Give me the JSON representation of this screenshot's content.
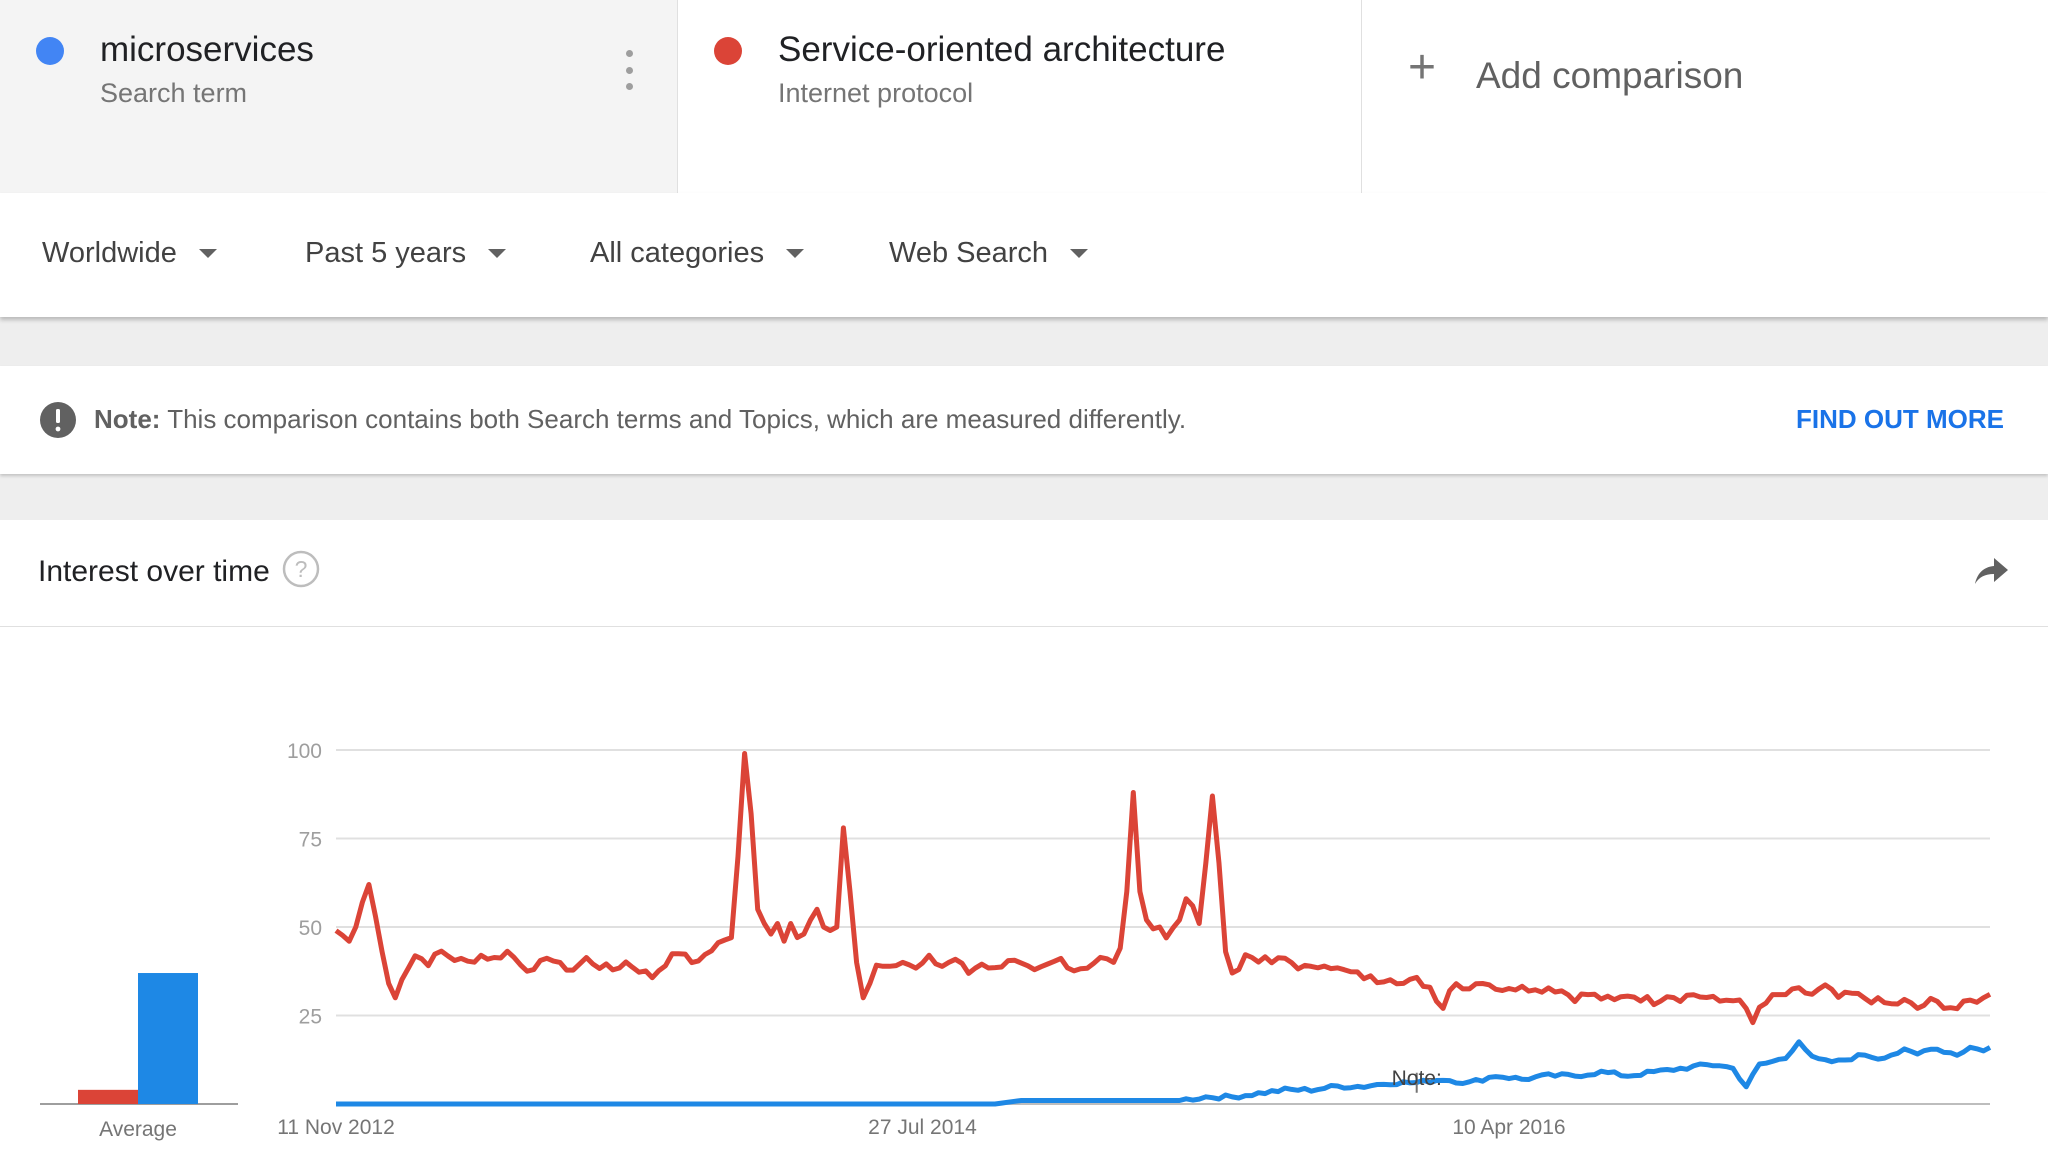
{
  "terms": [
    {
      "name": "microservices",
      "type": "Search term",
      "color": "#4285f4"
    },
    {
      "name": "Service-oriented architecture",
      "type": "Internet protocol",
      "color": "#db4437"
    }
  ],
  "add_comparison": "Add comparison",
  "filters": {
    "region": "Worldwide",
    "period": "Past 5 years",
    "category": "All categories",
    "search_type": "Web Search"
  },
  "note": {
    "label": "Note:",
    "text": "This comparison contains both Search terms and Topics, which are measured differently.",
    "link": "FIND OUT MORE"
  },
  "card": {
    "title": "Interest over time"
  },
  "icons": [
    "kebab-menu-icon",
    "plus-icon",
    "chevron-down-icon",
    "exclamation-icon",
    "help-icon",
    "share-icon"
  ],
  "chart_data": {
    "type": "line",
    "ylim": [
      0,
      100
    ],
    "y_ticks": [
      "100",
      "75",
      "50",
      "25"
    ],
    "x_tick_labels": [
      {
        "index": 0,
        "label": "11 Nov 2012"
      },
      {
        "index": 89,
        "label": "27 Jul 2014"
      },
      {
        "index": 178,
        "label": "10 Apr 2016"
      }
    ],
    "annotation": {
      "index": 164,
      "label": "Note:"
    },
    "average": {
      "label": "Average",
      "values": [
        4,
        37
      ]
    },
    "series": [
      {
        "color": "#db4437",
        "anchors": [
          [
            0,
            49
          ],
          [
            2,
            46
          ],
          [
            3,
            50
          ],
          [
            4,
            57
          ],
          [
            5,
            62
          ],
          [
            6,
            53
          ],
          [
            7,
            43
          ],
          [
            8,
            34
          ],
          [
            9,
            30
          ],
          [
            10,
            36
          ],
          [
            12,
            42
          ],
          [
            14,
            40
          ],
          [
            16,
            43
          ],
          [
            18,
            41
          ],
          [
            20,
            40
          ],
          [
            22,
            42
          ],
          [
            24,
            41
          ],
          [
            26,
            43
          ],
          [
            28,
            40
          ],
          [
            30,
            37
          ],
          [
            32,
            42
          ],
          [
            34,
            39
          ],
          [
            36,
            38
          ],
          [
            38,
            41
          ],
          [
            40,
            39
          ],
          [
            42,
            38
          ],
          [
            44,
            40
          ],
          [
            46,
            38
          ],
          [
            48,
            36
          ],
          [
            50,
            40
          ],
          [
            52,
            43
          ],
          [
            54,
            40
          ],
          [
            56,
            42
          ],
          [
            58,
            45
          ],
          [
            60,
            47
          ],
          [
            61,
            70
          ],
          [
            62,
            99
          ],
          [
            63,
            82
          ],
          [
            64,
            55
          ],
          [
            65,
            51
          ],
          [
            66,
            48
          ],
          [
            67,
            51
          ],
          [
            68,
            46
          ],
          [
            69,
            51
          ],
          [
            70,
            47
          ],
          [
            71,
            48
          ],
          [
            72,
            52
          ],
          [
            73,
            55
          ],
          [
            74,
            50
          ],
          [
            75,
            49
          ],
          [
            76,
            50
          ],
          [
            77,
            78
          ],
          [
            78,
            60
          ],
          [
            79,
            40
          ],
          [
            80,
            30
          ],
          [
            81,
            34
          ],
          [
            82,
            40
          ],
          [
            84,
            39
          ],
          [
            86,
            41
          ],
          [
            88,
            38
          ],
          [
            90,
            41
          ],
          [
            92,
            39
          ],
          [
            94,
            41
          ],
          [
            96,
            37
          ],
          [
            98,
            40
          ],
          [
            100,
            38
          ],
          [
            102,
            41
          ],
          [
            104,
            39
          ],
          [
            106,
            37
          ],
          [
            108,
            39
          ],
          [
            110,
            41
          ],
          [
            112,
            38
          ],
          [
            114,
            39
          ],
          [
            116,
            41
          ],
          [
            118,
            40
          ],
          [
            119,
            44
          ],
          [
            120,
            60
          ],
          [
            121,
            88
          ],
          [
            122,
            60
          ],
          [
            123,
            52
          ],
          [
            124,
            50
          ],
          [
            126,
            48
          ],
          [
            128,
            52
          ],
          [
            129,
            58
          ],
          [
            130,
            56
          ],
          [
            131,
            51
          ],
          [
            132,
            68
          ],
          [
            133,
            87
          ],
          [
            134,
            68
          ],
          [
            135,
            43
          ],
          [
            136,
            37
          ],
          [
            137,
            38
          ],
          [
            138,
            42
          ],
          [
            140,
            41
          ],
          [
            142,
            40
          ],
          [
            144,
            41
          ],
          [
            146,
            39
          ],
          [
            148,
            38
          ],
          [
            150,
            40
          ],
          [
            152,
            38
          ],
          [
            154,
            37
          ],
          [
            156,
            36
          ],
          [
            158,
            35
          ],
          [
            160,
            36
          ],
          [
            162,
            34
          ],
          [
            164,
            35
          ],
          [
            166,
            33
          ],
          [
            167,
            29
          ],
          [
            168,
            27
          ],
          [
            169,
            32
          ],
          [
            170,
            34
          ],
          [
            172,
            33
          ],
          [
            174,
            35
          ],
          [
            176,
            33
          ],
          [
            178,
            32
          ],
          [
            180,
            34
          ],
          [
            182,
            32
          ],
          [
            184,
            33
          ],
          [
            186,
            32
          ],
          [
            188,
            30
          ],
          [
            190,
            31
          ],
          [
            192,
            30
          ],
          [
            194,
            29
          ],
          [
            196,
            31
          ],
          [
            198,
            30
          ],
          [
            200,
            29
          ],
          [
            202,
            31
          ],
          [
            204,
            30
          ],
          [
            206,
            31
          ],
          [
            208,
            30
          ],
          [
            210,
            29
          ],
          [
            212,
            30
          ],
          [
            214,
            27
          ],
          [
            215,
            23
          ],
          [
            216,
            27
          ],
          [
            218,
            30
          ],
          [
            220,
            31
          ],
          [
            222,
            32
          ],
          [
            224,
            31
          ],
          [
            226,
            33
          ],
          [
            228,
            30
          ],
          [
            230,
            31
          ],
          [
            232,
            30
          ],
          [
            234,
            29
          ],
          [
            236,
            28
          ],
          [
            238,
            29
          ],
          [
            240,
            27
          ],
          [
            242,
            29
          ],
          [
            244,
            28
          ],
          [
            246,
            27
          ],
          [
            248,
            29
          ],
          [
            250,
            30
          ],
          [
            251,
            31
          ]
        ]
      },
      {
        "color": "#1e88e5",
        "anchors": [
          [
            0,
            0
          ],
          [
            70,
            0
          ],
          [
            100,
            0
          ],
          [
            104,
            1
          ],
          [
            112,
            1
          ],
          [
            116,
            1
          ],
          [
            120,
            1
          ],
          [
            124,
            1
          ],
          [
            128,
            1
          ],
          [
            132,
            2
          ],
          [
            136,
            2
          ],
          [
            140,
            3
          ],
          [
            144,
            4
          ],
          [
            148,
            4
          ],
          [
            152,
            5
          ],
          [
            156,
            5
          ],
          [
            160,
            6
          ],
          [
            164,
            6
          ],
          [
            168,
            7
          ],
          [
            172,
            6
          ],
          [
            176,
            8
          ],
          [
            180,
            7
          ],
          [
            184,
            8
          ],
          [
            188,
            8
          ],
          [
            192,
            9
          ],
          [
            196,
            8
          ],
          [
            200,
            9
          ],
          [
            204,
            10
          ],
          [
            208,
            11
          ],
          [
            210,
            11
          ],
          [
            212,
            10
          ],
          [
            214,
            5
          ],
          [
            216,
            11
          ],
          [
            218,
            12
          ],
          [
            220,
            13
          ],
          [
            222,
            18
          ],
          [
            224,
            13
          ],
          [
            226,
            12
          ],
          [
            228,
            12
          ],
          [
            230,
            13
          ],
          [
            232,
            14
          ],
          [
            234,
            13
          ],
          [
            236,
            14
          ],
          [
            238,
            15
          ],
          [
            240,
            14
          ],
          [
            242,
            16
          ],
          [
            244,
            15
          ],
          [
            246,
            14
          ],
          [
            248,
            16
          ],
          [
            250,
            15
          ],
          [
            251,
            16
          ]
        ]
      }
    ]
  }
}
